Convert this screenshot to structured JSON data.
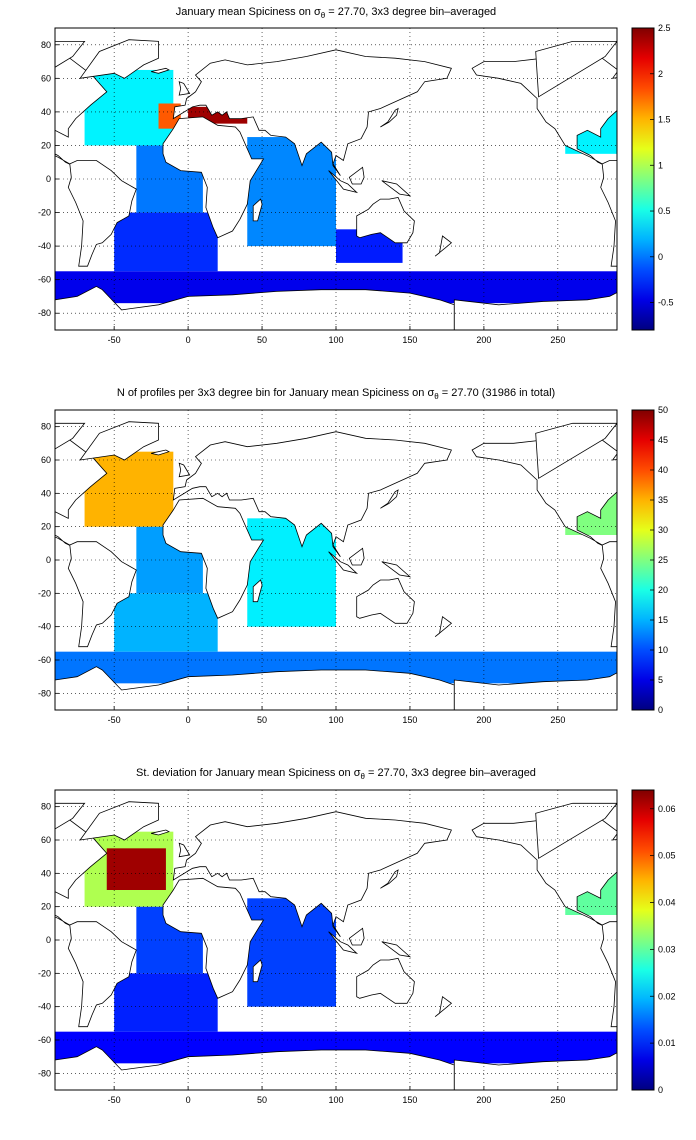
{
  "chart_data": [
    {
      "type": "heatmap",
      "title_parts": [
        "January mean Spiciness on ",
        "σ",
        "θ",
        " = 27.70, 3x3 degree bin–averaged"
      ],
      "x_ticks": [
        "-50",
        "0",
        "50",
        "100",
        "150",
        "200",
        "250"
      ],
      "y_ticks": [
        "80",
        "60",
        "40",
        "20",
        "0",
        "-20",
        "-40",
        "-60",
        "-80"
      ],
      "xlim": [
        -90,
        290
      ],
      "ylim": [
        -90,
        90
      ],
      "grid": true,
      "colorbar_ticks": [
        "2.5",
        "2",
        "1.5",
        "1",
        "0.5",
        "0",
        "-0.5"
      ],
      "colorbar_range": [
        -0.8,
        2.5
      ],
      "colormap": "jet",
      "regions": [
        {
          "lon": [
            -90,
            290
          ],
          "lat": [
            -74,
            -55
          ],
          "value": -0.45
        },
        {
          "lon": [
            -50,
            20
          ],
          "lat": [
            -55,
            -20
          ],
          "value": -0.25
        },
        {
          "lon": [
            -35,
            10
          ],
          "lat": [
            -20,
            20
          ],
          "value": 0.0
        },
        {
          "lon": [
            -70,
            -10
          ],
          "lat": [
            20,
            65
          ],
          "value": 0.4
        },
        {
          "lon": [
            -20,
            -5
          ],
          "lat": [
            30,
            45
          ],
          "value": 1.8
        },
        {
          "lon": [
            0,
            40
          ],
          "lat": [
            33,
            43
          ],
          "value": 2.4
        },
        {
          "lon": [
            40,
            100
          ],
          "lat": [
            -40,
            25
          ],
          "value": 0.05
        },
        {
          "lon": [
            100,
            145
          ],
          "lat": [
            -50,
            -30
          ],
          "value": -0.3
        },
        {
          "lon": [
            255,
            290
          ],
          "lat": [
            15,
            40
          ],
          "value": 0.4
        }
      ]
    },
    {
      "type": "heatmap",
      "title_parts": [
        "N of profiles per 3x3 degree bin for January mean Spiciness on ",
        "σ",
        "θ",
        " = 27.70 (31986 in total)"
      ],
      "x_ticks": [
        "-50",
        "0",
        "50",
        "100",
        "150",
        "200",
        "250"
      ],
      "y_ticks": [
        "80",
        "60",
        "40",
        "20",
        "0",
        "-20",
        "-40",
        "-60",
        "-80"
      ],
      "xlim": [
        -90,
        290
      ],
      "ylim": [
        -90,
        90
      ],
      "grid": true,
      "colorbar_ticks": [
        "50",
        "45",
        "40",
        "35",
        "30",
        "25",
        "20",
        "15",
        "10",
        "5",
        "0"
      ],
      "colorbar_range": [
        0,
        50
      ],
      "colormap": "jet",
      "total_profiles": 31986,
      "regions": [
        {
          "lon": [
            -90,
            290
          ],
          "lat": [
            -74,
            -55
          ],
          "value": 12
        },
        {
          "lon": [
            -50,
            20
          ],
          "lat": [
            -55,
            -20
          ],
          "value": 15
        },
        {
          "lon": [
            -35,
            10
          ],
          "lat": [
            -20,
            20
          ],
          "value": 14
        },
        {
          "lon": [
            -70,
            -10
          ],
          "lat": [
            20,
            65
          ],
          "value": 35
        },
        {
          "lon": [
            40,
            100
          ],
          "lat": [
            -40,
            25
          ],
          "value": 18
        },
        {
          "lon": [
            255,
            290
          ],
          "lat": [
            15,
            40
          ],
          "value": 25
        }
      ]
    },
    {
      "type": "heatmap",
      "title_parts": [
        "St. deviation for January mean Spiciness on ",
        "σ",
        "θ",
        " = 27.70, 3x3 degree bin–averaged"
      ],
      "x_ticks": [
        "-50",
        "0",
        "50",
        "100",
        "150",
        "200",
        "250"
      ],
      "y_ticks": [
        "80",
        "60",
        "40",
        "20",
        "0",
        "-20",
        "-40",
        "-60",
        "-80"
      ],
      "xlim": [
        -90,
        290
      ],
      "ylim": [
        -90,
        90
      ],
      "grid": true,
      "colorbar_ticks": [
        "0.06",
        "0.05",
        "0.04",
        "0.03",
        "0.02",
        "0.01",
        "0"
      ],
      "colorbar_range": [
        0,
        0.064
      ],
      "colormap": "jet",
      "regions": [
        {
          "lon": [
            -90,
            290
          ],
          "lat": [
            -74,
            -55
          ],
          "value": 0.008
        },
        {
          "lon": [
            -50,
            20
          ],
          "lat": [
            -55,
            -20
          ],
          "value": 0.01
        },
        {
          "lon": [
            -35,
            10
          ],
          "lat": [
            -20,
            20
          ],
          "value": 0.012
        },
        {
          "lon": [
            -70,
            -10
          ],
          "lat": [
            20,
            65
          ],
          "value": 0.035
        },
        {
          "lon": [
            -55,
            -15
          ],
          "lat": [
            30,
            55
          ],
          "value": 0.062
        },
        {
          "lon": [
            40,
            100
          ],
          "lat": [
            -40,
            25
          ],
          "value": 0.012
        },
        {
          "lon": [
            255,
            290
          ],
          "lat": [
            15,
            40
          ],
          "value": 0.03
        }
      ]
    }
  ]
}
